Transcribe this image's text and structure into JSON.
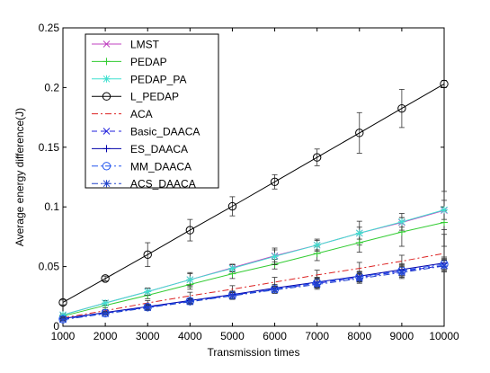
{
  "chart_data": {
    "type": "line",
    "title": "",
    "xlabel": "Transmission times",
    "ylabel": "Average energy difference(J)",
    "xlim": [
      1000,
      10000
    ],
    "ylim": [
      0,
      0.25
    ],
    "x": [
      1000,
      2000,
      3000,
      4000,
      5000,
      6000,
      7000,
      8000,
      9000,
      10000
    ],
    "x_ticks": [
      "1000",
      "2000",
      "3000",
      "4000",
      "5000",
      "6000",
      "7000",
      "8000",
      "9000",
      "10000"
    ],
    "y_ticks": [
      "0",
      "0.05",
      "0.1",
      "0.15",
      "0.2",
      "0.25"
    ],
    "y_tick_values": [
      0,
      0.05,
      0.1,
      0.15,
      0.2,
      0.25
    ],
    "grid": false,
    "legend_position": "top-left",
    "series": [
      {
        "name": "LMST",
        "color": "#c040c0",
        "line_style": "solid",
        "marker": "x",
        "values": [
          0.0095,
          0.0195,
          0.029,
          0.039,
          0.049,
          0.059,
          0.068,
          0.078,
          0.087,
          0.097
        ],
        "error": [
          0.001,
          0.002,
          0.003,
          0.006,
          0.003,
          0.005,
          0.004,
          0.01,
          0.004,
          0.016
        ]
      },
      {
        "name": "PEDAP",
        "color": "#33cc33",
        "line_style": "solid",
        "marker": "plus",
        "values": [
          0.0085,
          0.0175,
          0.026,
          0.035,
          0.044,
          0.052,
          0.061,
          0.07,
          0.079,
          0.087
        ],
        "error": [
          0.001,
          0.002,
          0.003,
          0.004,
          0.004,
          0.004,
          0.006,
          0.008,
          0.012,
          0.01
        ]
      },
      {
        "name": "PEDAP_PA",
        "color": "#40e0d0",
        "line_style": "solid",
        "marker": "star",
        "values": [
          0.0095,
          0.0195,
          0.029,
          0.039,
          0.0485,
          0.0585,
          0.068,
          0.078,
          0.0875,
          0.0975
        ],
        "error": [
          0.001,
          0.002,
          0.003,
          0.005,
          0.003,
          0.007,
          0.005,
          0.005,
          0.007,
          0.008
        ]
      },
      {
        "name": "L_PEDAP",
        "color": "#000000",
        "line_style": "solid",
        "marker": "circle",
        "values": [
          0.02,
          0.04,
          0.06,
          0.0805,
          0.1005,
          0.121,
          0.1415,
          0.162,
          0.1825,
          0.203
        ],
        "error": [
          0.002,
          0.002,
          0.01,
          0.009,
          0.008,
          0.006,
          0.007,
          0.017,
          0.016,
          0.003
        ]
      },
      {
        "name": "ACA",
        "color": "#dd2222",
        "line_style": "dashdot",
        "marker": "none",
        "values": [
          0.007,
          0.013,
          0.0195,
          0.0255,
          0.031,
          0.037,
          0.043,
          0.0485,
          0.0545,
          0.061
        ],
        "error": [
          0.001,
          0.001,
          0.002,
          0.003,
          0.003,
          0.004,
          0.004,
          0.005,
          0.005,
          0.006
        ]
      },
      {
        "name": "Basic_DAACA",
        "color": "#2222dd",
        "line_style": "dashed",
        "marker": "x",
        "values": [
          0.006,
          0.011,
          0.016,
          0.021,
          0.026,
          0.031,
          0.036,
          0.041,
          0.046,
          0.051
        ],
        "error": [
          0.001,
          0.001,
          0.002,
          0.002,
          0.003,
          0.003,
          0.004,
          0.004,
          0.005,
          0.005
        ]
      },
      {
        "name": "ES_DAACA",
        "color": "#0000aa",
        "line_style": "solid",
        "marker": "plus",
        "values": [
          0.0065,
          0.0115,
          0.0165,
          0.0215,
          0.0265,
          0.032,
          0.037,
          0.042,
          0.0475,
          0.053
        ],
        "error": [
          0.001,
          0.001,
          0.002,
          0.002,
          0.003,
          0.003,
          0.004,
          0.004,
          0.005,
          0.005
        ]
      },
      {
        "name": "MM_DAACA",
        "color": "#2255ee",
        "line_style": "dashdot",
        "marker": "circle",
        "values": [
          0.006,
          0.011,
          0.016,
          0.021,
          0.026,
          0.031,
          0.0365,
          0.0415,
          0.0465,
          0.052
        ],
        "error": [
          0.001,
          0.001,
          0.002,
          0.002,
          0.003,
          0.003,
          0.004,
          0.004,
          0.005,
          0.005
        ]
      },
      {
        "name": "ACS_DAACA",
        "color": "#2244cc",
        "line_style": "dashdot",
        "marker": "star",
        "values": [
          0.0055,
          0.0105,
          0.0155,
          0.0205,
          0.0255,
          0.0305,
          0.035,
          0.04,
          0.045,
          0.0505
        ],
        "error": [
          0.001,
          0.001,
          0.002,
          0.002,
          0.003,
          0.003,
          0.004,
          0.004,
          0.005,
          0.005
        ]
      }
    ]
  }
}
